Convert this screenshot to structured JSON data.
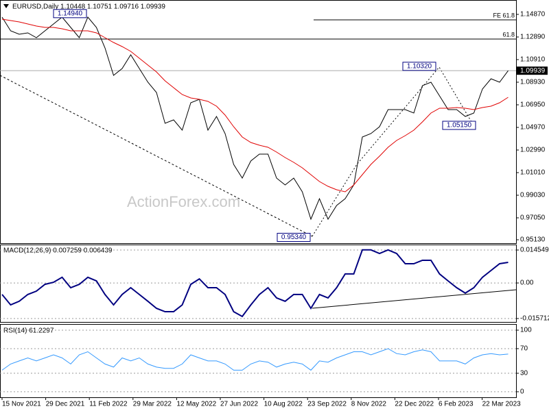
{
  "title": "EURUSD,Daily  1.10448 1.10751 1.09716 1.09939",
  "watermark": "ActionForex.com",
  "xtick_labels": [
    "15 Nov 2021",
    "29 Dec 2021",
    "11 Feb 2022",
    "29 Mar 2022",
    "12 May 2022",
    "27 Jun 2022",
    "10 Aug 2022",
    "23 Sep 2022",
    "8 Nov 2022",
    "22 Dec 2022",
    "6 Feb 2023",
    "22 Mar 2023"
  ],
  "chart_data": [
    {
      "type": "line",
      "ylim": [
        0.9483,
        1.1613
      ],
      "yticks": [
        {
          "value": 1.1487,
          "label": "1.14870"
        },
        {
          "value": 1.1289,
          "label": "1.12890"
        },
        {
          "value": 1.1091,
          "label": "1.10910"
        },
        {
          "value": 1.0893,
          "label": "1.08930"
        },
        {
          "value": 1.0695,
          "label": "1.06950"
        },
        {
          "value": 1.0497,
          "label": "1.04970"
        },
        {
          "value": 1.0299,
          "label": "1.02990"
        },
        {
          "value": 1.0101,
          "label": "1.01010"
        },
        {
          "value": 0.9903,
          "label": "0.99030"
        },
        {
          "value": 0.9705,
          "label": "0.97050"
        },
        {
          "value": 0.9513,
          "label": "0.95130"
        }
      ],
      "current": {
        "value": 1.09939,
        "label": "1.09939"
      },
      "levels": [
        {
          "label": "61.8",
          "value": 1.1271
        },
        {
          "label": "FE 61.8",
          "value": 1.1439
        }
      ],
      "annotations": [
        {
          "value": 1.1494,
          "label": "1.14940"
        },
        {
          "value": 1.1032,
          "label": "1.10320"
        },
        {
          "value": 1.0515,
          "label": "1.05150"
        },
        {
          "value": 0.9534,
          "label": "0.95340"
        }
      ],
      "series": [
        {
          "name": "EURUSD",
          "color": "#000000",
          "values": [
            1.1463,
            1.1343,
            1.1313,
            1.1325,
            1.1283,
            1.1343,
            1.1403,
            1.1463,
            1.1373,
            1.1283,
            1.1463,
            1.1373,
            1.1193,
            1.0953,
            1.1013,
            1.1133,
            1.1013,
            1.0893,
            1.0803,
            1.0533,
            1.0563,
            1.0473,
            1.0713,
            1.0743,
            1.0473,
            1.0593,
            1.0443,
            1.0173,
            1.0053,
            1.0203,
            1.0263,
            1.0263,
            1.0053,
            0.9993,
            1.0053,
            0.9933,
            0.9693,
            0.9873,
            0.9693,
            0.9813,
            0.9873,
            0.9993,
            1.0413,
            1.0443,
            1.0503,
            1.0653,
            1.0653,
            1.0653,
            1.0623,
            1.0863,
            1.0893,
            1.0773,
            1.0653,
            1.0653,
            1.0593,
            1.0623,
            1.0833,
            1.0923,
            1.0893,
            1.0994
          ]
        },
        {
          "color": "#e00000",
          "values": [
            1.1445,
            1.1433,
            1.1421,
            1.1403,
            1.1385,
            1.1373,
            1.1373,
            1.1361,
            1.1343,
            1.1343,
            1.1343,
            1.1325,
            1.1283,
            1.1241,
            1.1205,
            1.1163,
            1.1103,
            1.1043,
            1.0983,
            1.0905,
            1.0845,
            1.0785,
            1.0755,
            1.0743,
            1.0725,
            1.0683,
            1.0605,
            1.0503,
            1.0413,
            1.0365,
            1.0341,
            1.0323,
            1.0281,
            1.0233,
            1.0191,
            1.0143,
            1.0083,
            1.0023,
            0.9981,
            0.9951,
            0.9933,
            0.9993,
            1.0083,
            1.0173,
            1.0245,
            1.0323,
            1.0383,
            1.0425,
            1.0473,
            1.0545,
            1.0623,
            1.0665,
            1.0665,
            1.0671,
            1.0665,
            1.0653,
            1.0671,
            1.0683,
            1.0713,
            1.0761
          ]
        }
      ]
    },
    {
      "type": "line",
      "title": "MACD(12,26,9) 0.007259 0.006439",
      "ylim": [
        -0.017225,
        0.01697
      ],
      "yticks": [
        0.014549,
        {
          "value": 0,
          "label": "0.00"
        },
        -0.015712
      ],
      "series": [
        {
          "color": "#000080",
          "values": [
            -0.0051,
            -0.0097,
            -0.0081,
            -0.0051,
            -0.0036,
            -0.0006,
            0.0003,
            0.0025,
            -0.0021,
            -0.0006,
            0.0025,
            0.0009,
            -0.0051,
            -0.0097,
            -0.0051,
            -0.0021,
            -0.0051,
            -0.0081,
            -0.0112,
            -0.0127,
            -0.0127,
            -0.0097,
            -0.0006,
            0.0018,
            -0.0021,
            -0.0021,
            -0.0051,
            -0.0127,
            -0.0148,
            -0.0097,
            -0.0051,
            -0.0021,
            -0.0066,
            -0.0081,
            -0.0051,
            -0.0051,
            -0.0112,
            -0.0051,
            -0.0066,
            -0.0021,
            0.004,
            0.004,
            0.0146,
            0.0146,
            0.013,
            0.0146,
            0.013,
            0.0085,
            0.0085,
            0.01,
            0.01,
            0.004,
            0.0009,
            -0.0021,
            -0.0045,
            -0.0021,
            0.0025,
            0.0055,
            0.0085,
            0.0091
          ]
        }
      ]
    },
    {
      "type": "line",
      "title": "RSI(14) 61.2297",
      "ylim": [
        -9,
        110
      ],
      "yticks": [
        100,
        70,
        30,
        0
      ],
      "series": [
        {
          "color": "#3399ff",
          "values": [
            35,
            45,
            50,
            55,
            50,
            55,
            60,
            55,
            45,
            60,
            65,
            55,
            45,
            40,
            55,
            50,
            55,
            45,
            40,
            38,
            38,
            45,
            60,
            55,
            50,
            50,
            45,
            35,
            35,
            45,
            50,
            48,
            40,
            45,
            48,
            45,
            35,
            50,
            48,
            55,
            60,
            65,
            65,
            60,
            65,
            70,
            62,
            60,
            65,
            68,
            65,
            50,
            50,
            50,
            45,
            55,
            60,
            62,
            60,
            61.2
          ]
        }
      ]
    }
  ]
}
